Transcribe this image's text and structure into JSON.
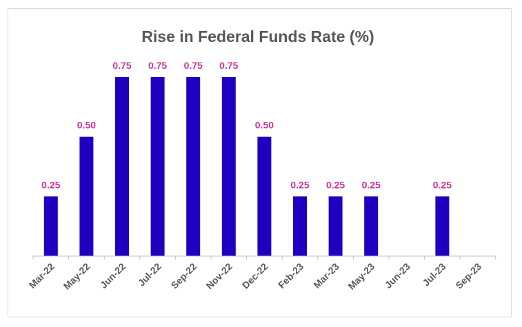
{
  "chart_data": {
    "type": "bar",
    "title": "Rise in Federal Funds Rate (%)",
    "xlabel": "",
    "ylabel": "",
    "categories": [
      "Mar-22",
      "May-22",
      "Jun-22",
      "Jul-22",
      "Sep-22",
      "Nov-22",
      "Dec-22",
      "Feb-23",
      "Mar-23",
      "May-23",
      "Jun-23",
      "Jul-23",
      "Sep-23"
    ],
    "values": [
      0.25,
      0.5,
      0.75,
      0.75,
      0.75,
      0.75,
      0.5,
      0.25,
      0.25,
      0.25,
      null,
      0.25,
      null
    ],
    "data_labels": [
      "0.25",
      "0.50",
      "0.75",
      "0.75",
      "0.75",
      "0.75",
      "0.50",
      "0.25",
      "0.25",
      "0.25",
      "",
      "0.25",
      ""
    ],
    "ylim": [
      0,
      0.75
    ],
    "grid": false,
    "legend": "none",
    "colors": {
      "bar": "#1f00c0",
      "label": "#cc3399",
      "axis": "#bfbfbf",
      "title": "#595959",
      "tick": "#595959"
    }
  }
}
